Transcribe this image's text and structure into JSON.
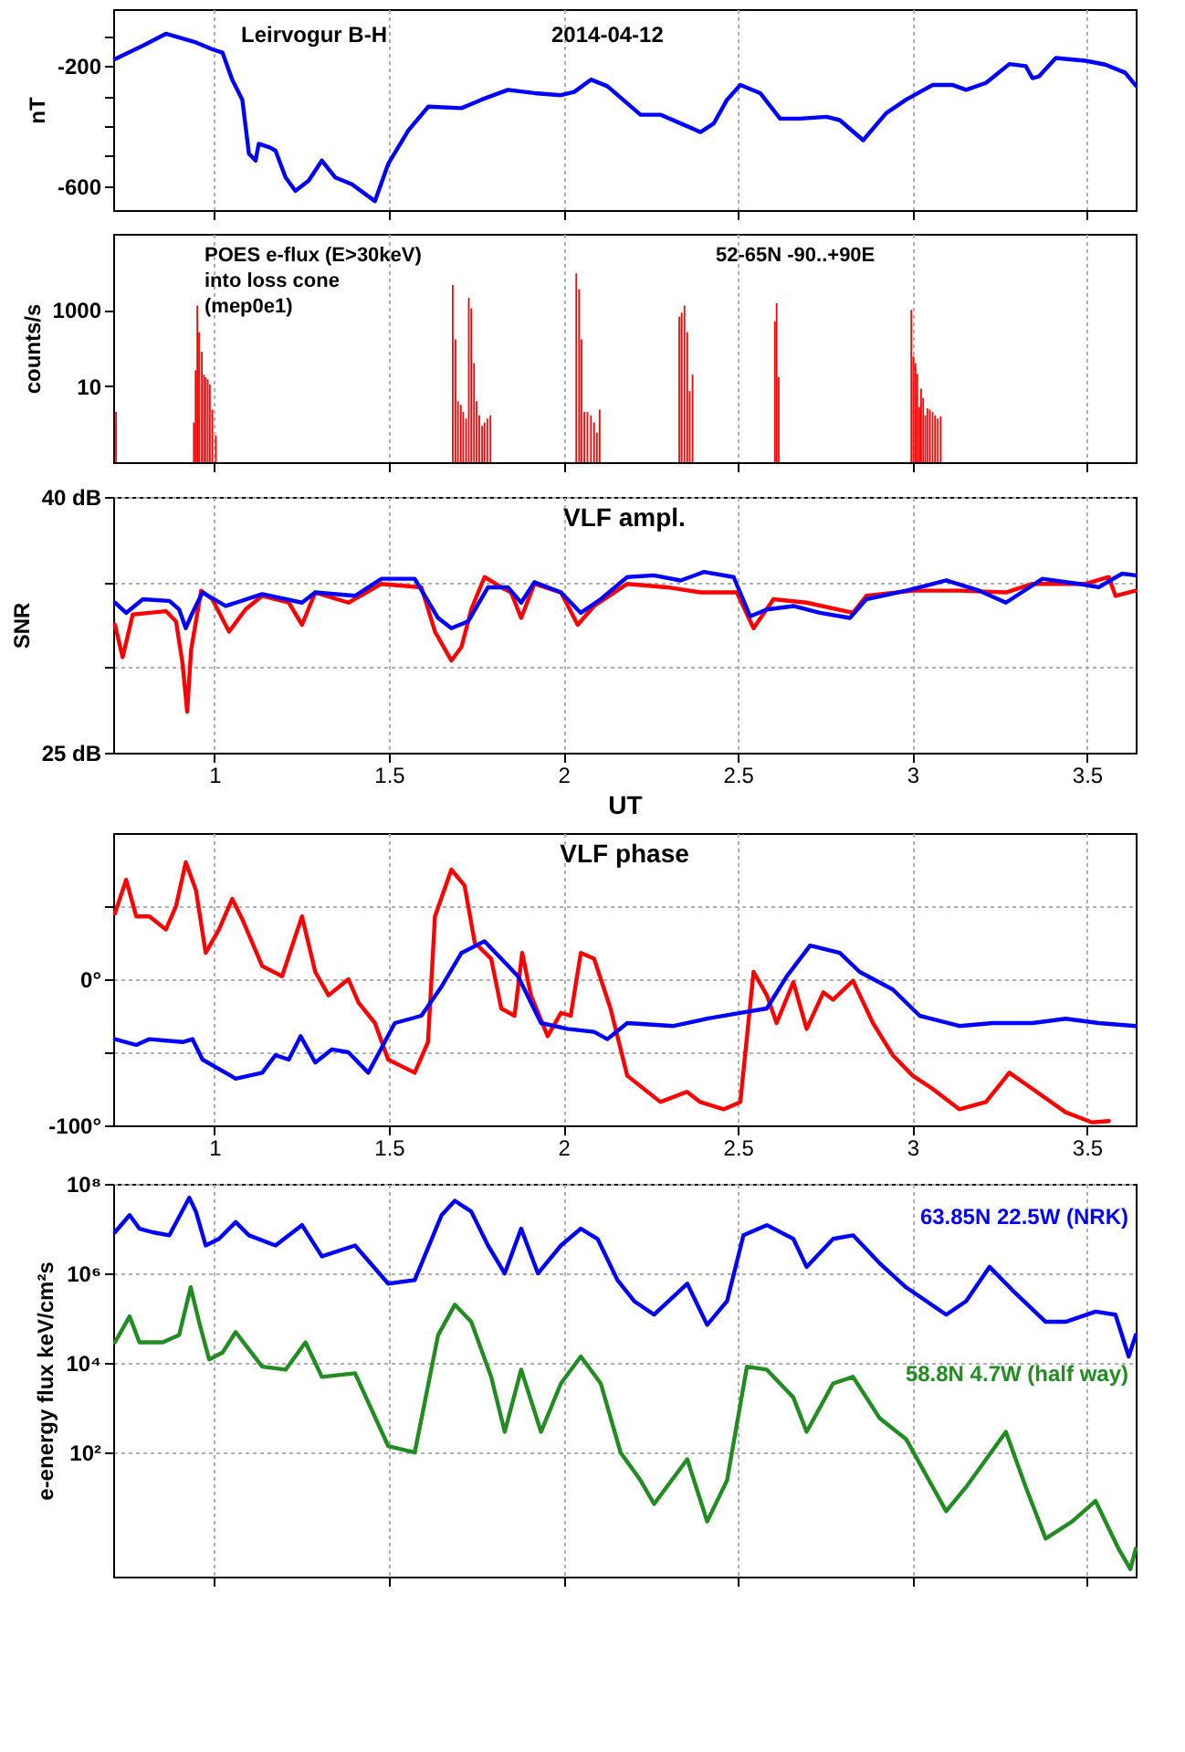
{
  "chart_data": [
    {
      "type": "line",
      "ylabel": "nT",
      "annotations": [
        "Leirvogur B-H",
        "2014-04-12"
      ],
      "color": "#0000ff",
      "x": [
        0.715,
        0.795,
        0.861,
        0.947,
        0.994,
        1.023,
        1.051,
        1.08,
        1.099,
        1.118,
        1.127,
        1.156,
        1.175,
        1.204,
        1.232,
        1.27,
        1.308,
        1.346,
        1.394,
        1.46,
        1.498,
        1.556,
        1.613,
        1.708,
        1.765,
        1.841,
        1.917,
        1.993,
        2.031,
        2.079,
        2.126,
        2.221,
        2.278,
        2.336,
        2.393,
        2.431,
        2.469,
        2.507,
        2.564,
        2.621,
        2.678,
        2.754,
        2.792,
        2.859,
        2.925,
        2.982,
        3.058,
        3.116,
        3.154,
        3.211,
        3.278,
        3.325,
        3.344,
        3.363,
        3.411,
        3.496,
        3.553,
        3.61,
        3.64
      ],
      "values": [
        -177,
        -132,
        -92,
        -121,
        -144,
        -155,
        -245,
        -312,
        -492,
        -515,
        -459,
        -470,
        -481,
        -571,
        -616,
        -582,
        -515,
        -571,
        -594,
        -650,
        -526,
        -414,
        -335,
        -340,
        -312,
        -279,
        -290,
        -297,
        -286,
        -245,
        -267,
        -362,
        -362,
        -391,
        -420,
        -391,
        -312,
        -263,
        -290,
        -375,
        -375,
        -369,
        -380,
        -447,
        -357,
        -312,
        -263,
        -263,
        -279,
        -256,
        -193,
        -200,
        -240,
        -234,
        -173,
        -182,
        -195,
        -222,
        -265
      ],
      "xlim": [
        0.71,
        3.64
      ],
      "xticks": [
        1,
        1.5,
        2,
        2.5,
        3,
        3.5
      ],
      "ylim": [
        -680,
        -10
      ],
      "yticks": [
        {
          "value": -100,
          "label": null
        },
        -200,
        {
          "value": -300,
          "label": null
        },
        {
          "value": -400,
          "label": null
        },
        {
          "value": -500,
          "label": null
        },
        -600
      ],
      "grid": "x",
      "tick_labels": "y"
    },
    {
      "type": "bar",
      "ylabel": "counts/s",
      "annotations": [
        "POES e-flux (E>30keV)",
        "into loss cone",
        "(mep0e1)",
        "52-65N   -90..+90E"
      ],
      "color": "#ff0000",
      "log": true,
      "x": [
        0.718,
        0.941,
        0.946,
        0.951,
        0.956,
        0.964,
        0.97,
        0.975,
        0.981,
        0.987,
        0.994,
        1.004,
        1.683,
        1.691,
        1.698,
        1.706,
        1.713,
        1.721,
        1.729,
        1.736,
        1.744,
        1.751,
        1.759,
        1.767,
        1.774,
        1.782,
        1.791,
        2.037,
        2.045,
        2.052,
        2.06,
        2.069,
        2.079,
        2.088,
        2.096,
        2.104,
        2.332,
        2.339,
        2.347,
        2.355,
        2.362,
        2.37,
        2.606,
        2.611,
        2.617,
        2.997,
        3.003,
        3.009,
        3.014,
        3.02,
        3.025,
        3.031,
        3.037,
        3.043,
        3.05,
        3.058,
        3.065,
        3.073,
        3.081
      ],
      "values": [
        2.1,
        1.1,
        26,
        1300,
        260,
        79,
        20,
        17,
        15,
        11,
        2.4,
        0.5,
        4500,
        170,
        4,
        3.2,
        2.1,
        1.4,
        2100,
        1100,
        40,
        4,
        1.7,
        0.9,
        1.1,
        1.4,
        1.7,
        9100,
        3500,
        170,
        2.1,
        2.1,
        1.7,
        1.1,
        0.6,
        2.4,
        660,
        850,
        1300,
        260,
        7.4,
        20,
        500,
        1500,
        17,
        1000,
        60,
        40,
        21,
        2.8,
        8.5,
        4.9,
        1.7,
        2.6,
        2.4,
        2.1,
        1.7,
        1.4,
        1.6
      ],
      "xlim": [
        0.71,
        3.64
      ],
      "xticks": [
        1,
        1.5,
        2,
        2.5,
        3,
        3.5
      ],
      "ylim": [
        0.1,
        100000
      ],
      "yticks": [
        10,
        1000
      ],
      "grid": "x",
      "tick_labels": "y"
    },
    {
      "type": "line",
      "title": "VLF ampl.",
      "xlabel": "UT",
      "ylabel": "SNR",
      "series": [
        {
          "color": "#ff0000",
          "x": [
            0.715,
            0.737,
            0.766,
            0.814,
            0.861,
            0.89,
            0.909,
            0.922,
            0.933,
            0.962,
            0.994,
            1.042,
            1.089,
            1.137,
            1.213,
            1.251,
            1.289,
            1.384,
            1.479,
            1.593,
            1.632,
            1.679,
            1.708,
            1.736,
            1.774,
            1.822,
            1.85,
            1.879,
            1.917,
            1.993,
            2.041,
            2.088,
            2.183,
            2.297,
            2.393,
            2.497,
            2.545,
            2.602,
            2.697,
            2.83,
            2.868,
            3.001,
            3.135,
            3.268,
            3.344,
            3.496,
            3.563,
            3.582,
            3.64
          ],
          "values": [
            32.5,
            30.6,
            33.1,
            33.2,
            33.3,
            32.7,
            30.2,
            27.4,
            31.0,
            34.5,
            34.0,
            32.1,
            33.4,
            34.2,
            33.8,
            32.5,
            34.4,
            33.8,
            34.9,
            34.7,
            32.1,
            30.4,
            31.2,
            33.4,
            35.3,
            34.7,
            34.4,
            32.9,
            34.9,
            34.4,
            32.5,
            33.6,
            34.9,
            34.7,
            34.4,
            34.4,
            32.3,
            34.0,
            33.8,
            33.2,
            34.2,
            34.5,
            34.5,
            34.4,
            34.9,
            34.9,
            35.3,
            34.2,
            34.5
          ]
        },
        {
          "color": "#0000ff",
          "x": [
            0.715,
            0.747,
            0.795,
            0.871,
            0.899,
            0.918,
            0.937,
            0.966,
            1.032,
            1.137,
            1.251,
            1.289,
            1.403,
            1.479,
            1.574,
            1.641,
            1.679,
            1.727,
            1.784,
            1.841,
            1.879,
            1.917,
            1.993,
            2.05,
            2.107,
            2.183,
            2.259,
            2.336,
            2.403,
            2.488,
            2.535,
            2.583,
            2.659,
            2.735,
            2.821,
            2.868,
            2.982,
            3.097,
            3.192,
            3.268,
            3.373,
            3.477,
            3.534,
            3.601,
            3.64
          ],
          "values": [
            33.8,
            33.2,
            34.0,
            33.9,
            33.4,
            32.3,
            33.2,
            34.4,
            33.6,
            34.3,
            33.8,
            34.4,
            34.2,
            35.2,
            35.2,
            32.9,
            32.3,
            32.7,
            34.7,
            34.7,
            33.8,
            35.0,
            34.4,
            33.2,
            34.0,
            35.3,
            35.4,
            35.1,
            35.6,
            35.3,
            33.0,
            33.4,
            33.6,
            33.2,
            32.9,
            34.0,
            34.5,
            35.1,
            34.5,
            33.8,
            35.2,
            34.9,
            34.7,
            35.5,
            35.4
          ]
        }
      ],
      "xlim": [
        0.71,
        3.64
      ],
      "xticks": [
        1,
        1.5,
        2,
        2.5,
        3,
        3.5
      ],
      "ylim": [
        25,
        40
      ],
      "yticks": [
        {
          "value": 40,
          "label": "40 dB"
        },
        {
          "value": 35,
          "label": null
        },
        {
          "value": 30,
          "label": null
        },
        {
          "value": 25,
          "label": "25 dB"
        }
      ],
      "grid": true
    },
    {
      "type": "line",
      "title": "VLF phase",
      "series": [
        {
          "color": "#ff0000",
          "x": [
            0.715,
            0.747,
            0.776,
            0.814,
            0.861,
            0.89,
            0.918,
            0.947,
            0.975,
            1.013,
            1.051,
            1.08,
            1.137,
            1.194,
            1.223,
            1.251,
            1.289,
            1.327,
            1.384,
            1.413,
            1.46,
            1.498,
            1.574,
            1.612,
            1.632,
            1.679,
            1.717,
            1.746,
            1.793,
            1.822,
            1.86,
            1.882,
            1.907,
            1.955,
            1.993,
            2.021,
            2.05,
            2.088,
            2.135,
            2.183,
            2.278,
            2.354,
            2.392,
            2.459,
            2.507,
            2.545,
            2.583,
            2.611,
            2.659,
            2.697,
            2.745,
            2.773,
            2.83,
            2.887,
            2.944,
            3.001,
            3.058,
            3.135,
            3.211,
            3.278,
            3.344,
            3.439,
            3.515,
            3.563
          ],
          "values": [
            45,
            68,
            43,
            43,
            34,
            50,
            80,
            61,
            18,
            34,
            55,
            41,
            9,
            2,
            23,
            43,
            5,
            -11,
            0,
            -16,
            -30,
            -55,
            -64,
            -43,
            43,
            75,
            64,
            25,
            14,
            -20,
            -25,
            18,
            -11,
            -39,
            -23,
            -25,
            18,
            14,
            -20,
            -66,
            -84,
            -77,
            -84,
            -89,
            -84,
            5,
            -11,
            -30,
            -2,
            -34,
            -9,
            -14,
            -1,
            -30,
            -52,
            -66,
            -75,
            -89,
            -84,
            -64,
            -75,
            -91,
            -98,
            -97
          ]
        },
        {
          "color": "#0000ff",
          "x": [
            0.715,
            0.776,
            0.814,
            0.909,
            0.937,
            0.966,
            1.061,
            1.137,
            1.175,
            1.213,
            1.247,
            1.289,
            1.337,
            1.384,
            1.441,
            1.517,
            1.593,
            1.651,
            1.708,
            1.774,
            1.822,
            1.87,
            1.936,
            2.012,
            2.088,
            2.126,
            2.183,
            2.316,
            2.412,
            2.507,
            2.583,
            2.64,
            2.707,
            2.792,
            2.849,
            2.944,
            3.021,
            3.135,
            3.23,
            3.344,
            3.439,
            3.534,
            3.64
          ],
          "values": [
            -41,
            -45,
            -41,
            -43,
            -41,
            -55,
            -68,
            -64,
            -52,
            -55,
            -39,
            -57,
            -48,
            -50,
            -64,
            -30,
            -25,
            -5,
            18,
            26,
            14,
            2,
            -30,
            -34,
            -36,
            -41,
            -30,
            -32,
            -27,
            -23,
            -20,
            2,
            23,
            18,
            5,
            -7,
            -25,
            -32,
            -30,
            -30,
            -27,
            -30,
            -32
          ]
        }
      ],
      "xlim": [
        0.71,
        3.64
      ],
      "xticks": [
        1,
        1.5,
        2,
        2.5,
        3,
        3.5
      ],
      "ylim": [
        -100,
        100
      ],
      "yticks": [
        {
          "value": 50,
          "label": null
        },
        {
          "value": 0,
          "label": "0°"
        },
        {
          "value": -50,
          "label": null
        },
        {
          "value": -100,
          "label": "-100°"
        }
      ],
      "grid": true
    },
    {
      "type": "line",
      "ylabel": "e-energy flux keV/cm²s",
      "log": true,
      "series": [
        {
          "name": "63.85N 22.5W (NRK)",
          "color": "#0000ff",
          "x": [
            0.715,
            0.757,
            0.785,
            0.823,
            0.871,
            0.928,
            0.947,
            0.975,
            1.013,
            1.061,
            1.099,
            1.175,
            1.251,
            1.308,
            1.403,
            1.498,
            1.574,
            1.651,
            1.689,
            1.736,
            1.784,
            1.832,
            1.879,
            1.927,
            1.993,
            2.05,
            2.098,
            2.155,
            2.203,
            2.26,
            2.355,
            2.412,
            2.469,
            2.516,
            2.583,
            2.659,
            2.697,
            2.773,
            2.83,
            2.906,
            2.982,
            3.097,
            3.154,
            3.221,
            3.287,
            3.382,
            3.439,
            3.525,
            3.582,
            3.62,
            3.64
          ],
          "values": [
            8300000,
            20000000,
            10000000,
            8300000,
            7100000,
            49000000,
            24000000,
            4200000,
            5900000,
            14000000,
            7100000,
            4200000,
            12000000,
            2400000,
            4200000,
            590000,
            710000,
            20000000,
            42000000,
            24000000,
            4200000,
            1000000,
            10000000,
            1000000,
            4200000,
            10000000,
            5900000,
            710000,
            240000,
            120000,
            590000,
            71000,
            240000,
            7100000,
            12000000,
            5900000,
            1400000,
            5900000,
            7100000,
            1700000,
            490000,
            120000,
            240000,
            1400000,
            420000,
            83000,
            83000,
            140000,
            120000,
            14000,
            42000
          ]
        },
        {
          "name": "58.8N 4.7W (half way)",
          "color": "#228b22",
          "x": [
            0.715,
            0.757,
            0.785,
            0.852,
            0.899,
            0.932,
            0.956,
            0.985,
            1.023,
            1.061,
            1.099,
            1.137,
            1.204,
            1.261,
            1.308,
            1.403,
            1.498,
            1.574,
            1.641,
            1.689,
            1.736,
            1.793,
            1.832,
            1.879,
            1.936,
            1.993,
            2.05,
            2.107,
            2.164,
            2.221,
            2.26,
            2.355,
            2.412,
            2.469,
            2.526,
            2.583,
            2.659,
            2.697,
            2.773,
            2.83,
            2.906,
            2.982,
            3.097,
            3.154,
            3.268,
            3.325,
            3.382,
            3.458,
            3.525,
            3.591,
            3.625,
            3.64
          ],
          "values": [
            29000,
            110000,
            29000,
            29000,
            42000,
            490000,
            83000,
            12000,
            17000,
            49000,
            20000,
            8300,
            7100,
            29000,
            4900,
            5900,
            140,
            100,
            42000,
            200000,
            83000,
            4900,
            290,
            7100,
            290,
            3500,
            14000,
            3500,
            100,
            24,
            7.1,
            71,
            2.9,
            24,
            8300,
            7100,
            1700,
            290,
            3500,
            4900,
            590,
            200,
            4.9,
            17,
            290,
            17,
            1.2,
            2.9,
            8.3,
            0.71,
            0.25,
            0.71
          ]
        }
      ],
      "xlim": [
        0.71,
        3.64
      ],
      "xticks": [
        1,
        1.5,
        2,
        2.5,
        3,
        3.5
      ],
      "ylim": [
        0.17,
        100000000
      ],
      "yticks": [
        {
          "value": 100000000,
          "label": "10⁸"
        },
        {
          "value": 1000000,
          "label": "10⁶"
        },
        {
          "value": 10000,
          "label": "10⁴"
        },
        {
          "value": 100,
          "label": "10²"
        }
      ],
      "grid": true,
      "tick_labels": "y"
    }
  ]
}
